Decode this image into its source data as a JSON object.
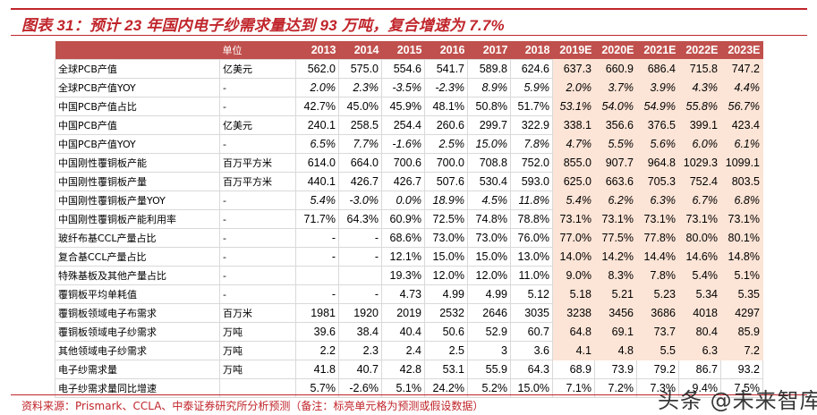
{
  "title": "图表 31：预计 23 年国内电子纱需求量达到 93 万吨，复合增速为 7.7%",
  "table": {
    "header": {
      "label": "",
      "unit": "单位",
      "years": [
        "2013",
        "2014",
        "2015",
        "2016",
        "2017",
        "2018",
        "2019E",
        "2020E",
        "2021E",
        "2022E",
        "2023E"
      ]
    },
    "rows": [
      {
        "label": "全球PCB产值",
        "unit": "亿美元",
        "italic": false,
        "values": [
          "562.0",
          "575.0",
          "554.6",
          "541.7",
          "589.8",
          "624.6",
          "637.3",
          "660.9",
          "686.4",
          "715.8",
          "747.2"
        ]
      },
      {
        "label": "全球PCB产值YOY",
        "unit": "-",
        "italic": true,
        "values": [
          "2.0%",
          "2.3%",
          "-3.5%",
          "-2.3%",
          "8.9%",
          "5.9%",
          "2.0%",
          "3.7%",
          "3.9%",
          "4.3%",
          "4.4%"
        ]
      },
      {
        "label": "中国PCB产值占比",
        "unit": "-",
        "italic": false,
        "values": [
          "42.7%",
          "45.0%",
          "45.9%",
          "48.1%",
          "50.8%",
          "51.7%",
          "53.1%",
          "54.0%",
          "54.9%",
          "55.8%",
          "56.7%"
        ],
        "italic_forecast": true
      },
      {
        "label": "中国PCB产值",
        "unit": "亿美元",
        "italic": false,
        "values": [
          "240.1",
          "258.5",
          "254.4",
          "260.6",
          "299.7",
          "322.9",
          "338.1",
          "356.6",
          "376.5",
          "399.1",
          "423.4"
        ]
      },
      {
        "label": "中国PCB产值YOY",
        "unit": "-",
        "italic": true,
        "values": [
          "6.5%",
          "7.7%",
          "-1.6%",
          "2.5%",
          "15.0%",
          "7.8%",
          "4.7%",
          "5.5%",
          "5.6%",
          "6.0%",
          "6.1%"
        ]
      },
      {
        "label": "中国刚性覆铜板产能",
        "unit": "百万平方米",
        "italic": false,
        "values": [
          "614.0",
          "664.0",
          "700.6",
          "700.0",
          "708.8",
          "752.0",
          "855.0",
          "907.7",
          "964.8",
          "1029.3",
          "1099.1"
        ]
      },
      {
        "label": "中国刚性覆铜板产量",
        "unit": "百万平方米",
        "italic": false,
        "values": [
          "440.1",
          "426.7",
          "426.7",
          "507.6",
          "530.4",
          "593.0",
          "625.0",
          "663.6",
          "705.3",
          "752.4",
          "803.5"
        ]
      },
      {
        "label": "中国刚性覆铜板产量YOY",
        "unit": "-",
        "italic": true,
        "values": [
          "5.4%",
          "-3.0%",
          "0.0%",
          "18.9%",
          "4.5%",
          "11.8%",
          "5.4%",
          "6.2%",
          "6.3%",
          "6.7%",
          "6.8%"
        ]
      },
      {
        "label": "中国刚性覆铜板产能利用率",
        "unit": "-",
        "italic": false,
        "values": [
          "71.7%",
          "64.3%",
          "60.9%",
          "72.5%",
          "74.8%",
          "78.8%",
          "73.1%",
          "73.1%",
          "73.1%",
          "73.1%",
          "73.1%"
        ]
      },
      {
        "label": "玻纤布基CCL产量占比",
        "unit": "-",
        "italic": false,
        "values": [
          "-",
          "-",
          "68.6%",
          "73.0%",
          "73.0%",
          "76.0%",
          "77.0%",
          "77.5%",
          "77.8%",
          "80.0%",
          "80.1%"
        ]
      },
      {
        "label": "复合基CCL产量占比",
        "unit": "-",
        "italic": false,
        "values": [
          "-",
          "-",
          "12.1%",
          "15.0%",
          "15.0%",
          "13.0%",
          "14.0%",
          "14.2%",
          "14.4%",
          "14.6%",
          "14.8%"
        ]
      },
      {
        "label": "特殊基板及其他产量占比",
        "unit": "-",
        "italic": false,
        "values": [
          "",
          "",
          "19.3%",
          "12.0%",
          "12.0%",
          "11.0%",
          "9.0%",
          "8.3%",
          "7.8%",
          "5.4%",
          "5.1%"
        ]
      },
      {
        "label": "覆铜板平均单耗值",
        "unit": "-",
        "italic": false,
        "values": [
          "-",
          "-",
          "4.73",
          "4.99",
          "4.99",
          "5.12",
          "5.18",
          "5.21",
          "5.23",
          "5.34",
          "5.35"
        ]
      },
      {
        "label": "覆铜板领域电子布需求",
        "unit": "百万米",
        "italic": false,
        "values": [
          "1981",
          "1920",
          "2019",
          "2532",
          "2646",
          "3035",
          "3238",
          "3456",
          "3686",
          "4018",
          "4297"
        ]
      },
      {
        "label": "覆铜板领域电子纱需求",
        "unit": "万吨",
        "italic": false,
        "values": [
          "39.6",
          "38.4",
          "40.4",
          "50.6",
          "52.9",
          "60.7",
          "64.8",
          "69.1",
          "73.7",
          "80.4",
          "85.9"
        ]
      },
      {
        "label": "其他领域电子纱需求",
        "unit": "万吨",
        "italic": false,
        "values": [
          "2.2",
          "2.3",
          "2.4",
          "2.5",
          "3",
          "3.6",
          "4.1",
          "4.8",
          "5.5",
          "6.3",
          "7.2"
        ]
      },
      {
        "label": "电子纱需求量",
        "unit": "万吨",
        "italic": false,
        "values": [
          "41.8",
          "40.7",
          "42.8",
          "53.1",
          "55.9",
          "64.3",
          "68.9",
          "73.9",
          "79.2",
          "86.7",
          "93.2"
        ]
      },
      {
        "label": "电子纱需求量同比增速",
        "unit": "",
        "italic": false,
        "values": [
          "5.7%",
          "-2.6%",
          "5.1%",
          "24.2%",
          "5.2%",
          "15.0%",
          "7.1%",
          "7.2%",
          "7.3%",
          "9.4%",
          "7.5%"
        ]
      }
    ]
  },
  "source": "资料来源：Prismark、CCLA、中泰证券研究所分析预测（备注：标亮单元格为预测或假设数据）",
  "watermark": "头条 @未来智库",
  "colors": {
    "accent_red": "#c0252b",
    "header_bg": "#c0504d",
    "forecast_bg": "#fce4d6"
  }
}
